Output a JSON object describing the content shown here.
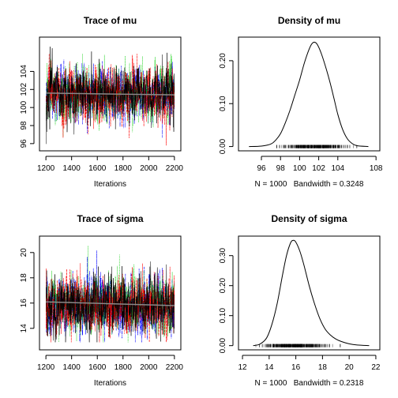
{
  "chart_data": [
    {
      "type": "line",
      "kind": "trace",
      "title": "Trace of mu",
      "xlabel": "Iterations",
      "ylabel": "",
      "xlim": [
        1150,
        2250
      ],
      "ylim": [
        95.2,
        107.8
      ],
      "xticks": [
        1200,
        1400,
        1600,
        1800,
        2000,
        2200
      ],
      "yticks": [
        96,
        98,
        100,
        102,
        104
      ],
      "colors": [
        "#000000",
        "#ff0000",
        "#00cd00",
        "#0000ff"
      ],
      "chains": 4,
      "center": 101.5,
      "spread": 1.5,
      "trend": {
        "x": [
          1200,
          2200
        ],
        "y": [
          101.6,
          101.4
        ]
      }
    },
    {
      "type": "line",
      "kind": "density",
      "title": "Density of mu",
      "xlabel": "N = 1000   Bandwidth = 0.3248",
      "ylabel": "",
      "xlim": [
        93.6,
        108.4
      ],
      "ylim": [
        -0.01,
        0.255
      ],
      "xticks": [
        96,
        98,
        100,
        102,
        104,
        108
      ],
      "yticks": [
        0.0,
        0.1,
        0.2
      ],
      "ytick_labels": [
        "0.00",
        "0.10",
        "0.20"
      ],
      "x": [
        94.7,
        96.0,
        97.0,
        97.5,
        98.0,
        98.5,
        99.0,
        99.5,
        100.0,
        100.5,
        101.0,
        101.3,
        101.6,
        101.9,
        102.3,
        102.8,
        103.2,
        103.6,
        104.0,
        104.5,
        105.0,
        105.5,
        106.0,
        107.2
      ],
      "y": [
        0.0,
        0.001,
        0.006,
        0.015,
        0.03,
        0.055,
        0.085,
        0.12,
        0.155,
        0.195,
        0.227,
        0.24,
        0.243,
        0.236,
        0.215,
        0.18,
        0.148,
        0.112,
        0.075,
        0.04,
        0.018,
        0.007,
        0.002,
        0.0
      ],
      "rug": {
        "center": 101.5,
        "sd": 1.6,
        "min": 97.6,
        "max": 106.0
      }
    },
    {
      "type": "line",
      "kind": "trace",
      "title": "Trace of sigma",
      "xlabel": "Iterations",
      "ylabel": "",
      "xlim": [
        1150,
        2250
      ],
      "ylim": [
        12.3,
        21.3
      ],
      "xticks": [
        1200,
        1400,
        1600,
        1800,
        2000,
        2200
      ],
      "yticks": [
        14,
        16,
        18,
        20
      ],
      "colors": [
        "#000000",
        "#ff0000",
        "#00cd00",
        "#0000ff"
      ],
      "chains": 4,
      "center": 15.9,
      "spread": 1.1,
      "trend": {
        "x": [
          1200,
          2200
        ],
        "y": [
          16.1,
          15.8
        ]
      }
    },
    {
      "type": "line",
      "kind": "density",
      "title": "Density of sigma",
      "xlabel": "N = 1000   Bandwidth = 0.2318",
      "ylabel": "",
      "xlim": [
        11.7,
        22.3
      ],
      "ylim": [
        -0.014,
        0.365
      ],
      "xticks": [
        12,
        14,
        16,
        18,
        20,
        22
      ],
      "yticks": [
        0.0,
        0.1,
        0.2,
        0.3
      ],
      "ytick_labels": [
        "0.00",
        "0.10",
        "0.20",
        "0.30"
      ],
      "x": [
        12.8,
        13.3,
        13.8,
        14.2,
        14.6,
        15.0,
        15.3,
        15.6,
        15.8,
        16.0,
        16.3,
        16.6,
        17.0,
        17.4,
        17.8,
        18.2,
        18.6,
        19.0,
        19.4,
        20.0,
        20.6,
        21.5
      ],
      "y": [
        0.0,
        0.005,
        0.025,
        0.07,
        0.14,
        0.235,
        0.3,
        0.342,
        0.351,
        0.345,
        0.315,
        0.27,
        0.2,
        0.14,
        0.09,
        0.055,
        0.035,
        0.022,
        0.014,
        0.006,
        0.002,
        0.0
      ],
      "rug": {
        "center": 15.9,
        "sd": 1.1,
        "min": 13.0,
        "max": 20.6
      }
    }
  ]
}
